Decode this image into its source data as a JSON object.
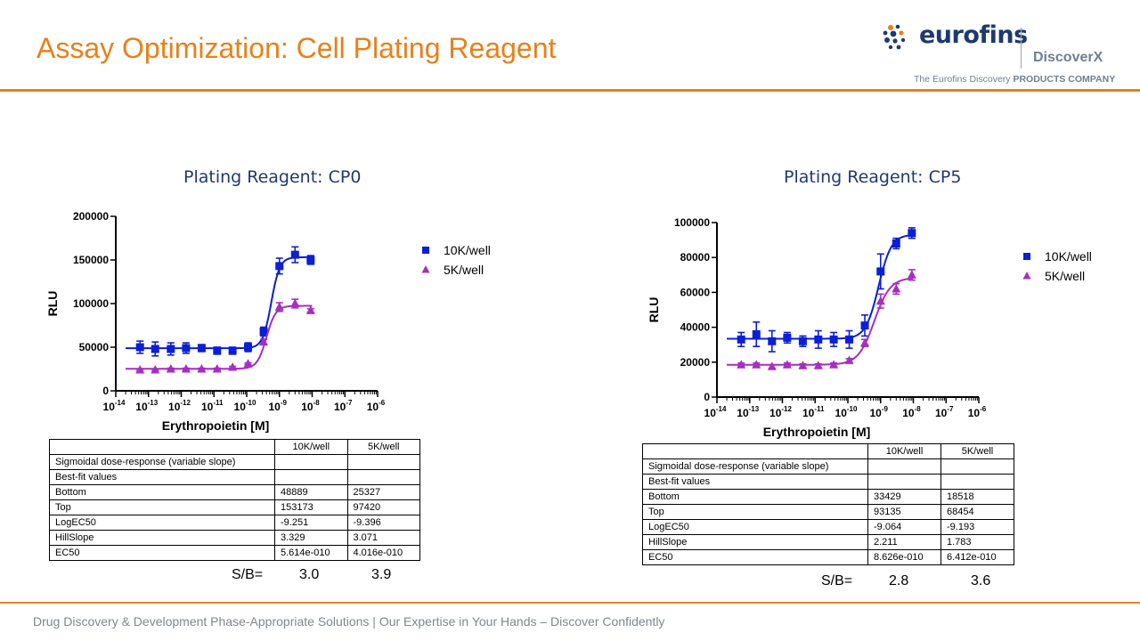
{
  "slide": {
    "title": "Assay Optimization: Cell Plating Reagent",
    "footer": "Drug Discovery & Development Phase-Appropriate Solutions | Our Expertise in Your Hands – Discover Confidently",
    "logo": {
      "brand": "eurofins",
      "sub": "DiscoverX",
      "tag_a": "The Eurofins Discovery",
      "tag_b": "PRODUCTS COMPANY",
      "color": "#1d3a6b"
    },
    "accent_color": "#e8801b"
  },
  "chart_data": [
    {
      "type": "scatter",
      "title": "Plating Reagent: CP0",
      "xlabel": "Erythropoietin [M]",
      "ylabel": "RLU",
      "xscale": "log",
      "xlim": [
        1e-14,
        1e-06
      ],
      "ylim": [
        0,
        200000
      ],
      "yticks": [
        "0",
        "50000",
        "100000",
        "150000",
        "200000"
      ],
      "xtick_exponents": [
        "-14",
        "-13",
        "-12",
        "-11",
        "-10",
        "-9",
        "-8",
        "-7",
        "-6"
      ],
      "legend_position": "right",
      "series": [
        {
          "name": "10K/well",
          "color": "#0a1fd6",
          "marker": "square",
          "x": [
            5.5e-14,
            1.6e-13,
            4.8e-13,
            1.4e-12,
            4.2e-12,
            1.25e-11,
            3.7e-11,
            1.1e-10,
            3.3e-10,
            1e-09,
            3e-09,
            9e-09
          ],
          "y": [
            50000,
            48000,
            48000,
            49000,
            49000,
            46000,
            46000,
            50000,
            68000,
            143000,
            156000,
            150000
          ],
          "err": [
            7000,
            8000,
            7000,
            6000,
            4000,
            4000,
            4000,
            5000,
            5000,
            9000,
            9000,
            5000
          ],
          "fit": {
            "bottom": 48889,
            "top": 153173,
            "logec50": -9.251,
            "hill": 3.329
          }
        },
        {
          "name": "5K/well",
          "color": "#a62ec2",
          "marker": "triangle",
          "x": [
            5.5e-14,
            1.6e-13,
            4.8e-13,
            1.4e-12,
            4.2e-12,
            1.25e-11,
            3.7e-11,
            1.1e-10,
            3.3e-10,
            1e-09,
            3e-09,
            9e-09
          ],
          "y": [
            24000,
            24000,
            25000,
            25000,
            25000,
            25000,
            27000,
            31000,
            56000,
            96000,
            100000,
            92000
          ],
          "err": [
            1000,
            1000,
            1000,
            1000,
            1000,
            1000,
            1000,
            1000,
            3000,
            5000,
            5000,
            2000
          ],
          "fit": {
            "bottom": 25327,
            "top": 97420,
            "logec50": -9.396,
            "hill": 3.071
          }
        }
      ]
    },
    {
      "type": "scatter",
      "title": "Plating Reagent: CP5",
      "xlabel": "Erythropoietin [M]",
      "ylabel": "RLU",
      "xscale": "log",
      "xlim": [
        1e-14,
        1e-06
      ],
      "ylim": [
        0,
        100000
      ],
      "yticks": [
        "0",
        "20000",
        "40000",
        "60000",
        "80000",
        "100000"
      ],
      "xtick_exponents": [
        "-14",
        "-13",
        "-12",
        "-11",
        "-10",
        "-9",
        "-8",
        "-7",
        "-6"
      ],
      "legend_position": "right",
      "series": [
        {
          "name": "10K/well",
          "color": "#0a1fd6",
          "marker": "square",
          "x": [
            5.5e-14,
            1.6e-13,
            4.8e-13,
            1.4e-12,
            4.2e-12,
            1.25e-11,
            3.7e-11,
            1.1e-10,
            3.3e-10,
            1e-09,
            3e-09,
            9e-09
          ],
          "y": [
            33000,
            36000,
            32000,
            34000,
            32000,
            33000,
            33000,
            33000,
            41000,
            72000,
            88000,
            94000
          ],
          "err": [
            4000,
            7000,
            6000,
            3000,
            3000,
            5000,
            4000,
            5000,
            6000,
            10000,
            3000,
            3000
          ],
          "fit": {
            "bottom": 33429,
            "top": 93135,
            "logec50": -9.064,
            "hill": 2.211
          }
        },
        {
          "name": "5K/well",
          "color": "#a62ec2",
          "marker": "triangle",
          "x": [
            5.5e-14,
            1.6e-13,
            4.8e-13,
            1.4e-12,
            4.2e-12,
            1.25e-11,
            3.7e-11,
            1.1e-10,
            3.3e-10,
            1e-09,
            3e-09,
            9e-09
          ],
          "y": [
            18500,
            18500,
            17500,
            18500,
            18000,
            18000,
            18500,
            21000,
            31000,
            55000,
            62000,
            70000
          ],
          "err": [
            1000,
            1000,
            1000,
            1000,
            1000,
            1000,
            1000,
            1000,
            2000,
            4000,
            3000,
            3000
          ],
          "fit": {
            "bottom": 18518,
            "top": 68454,
            "logec50": -9.193,
            "hill": 1.783
          }
        }
      ]
    }
  ],
  "tables": [
    {
      "headers": [
        "",
        "10K/well",
        "5K/well"
      ],
      "rows": [
        [
          "Sigmoidal dose-response (variable slope)",
          "",
          ""
        ],
        [
          "Best-fit values",
          "",
          ""
        ],
        [
          "Bottom",
          "48889",
          "25327"
        ],
        [
          "Top",
          "153173",
          "97420"
        ],
        [
          "LogEC50",
          "-9.251",
          "-9.396"
        ],
        [
          "HillSlope",
          "3.329",
          "3.071"
        ],
        [
          "EC50",
          "5.614e-010",
          "4.016e-010"
        ]
      ],
      "sb_label": "S/B=",
      "sb_values": [
        "3.0",
        "3.9"
      ]
    },
    {
      "headers": [
        "",
        "10K/well",
        "5K/well"
      ],
      "rows": [
        [
          "Sigmoidal dose-response (variable slope)",
          "",
          ""
        ],
        [
          "Best-fit values",
          "",
          ""
        ],
        [
          "Bottom",
          "33429",
          "18518"
        ],
        [
          "Top",
          "93135",
          "68454"
        ],
        [
          "LogEC50",
          "-9.064",
          "-9.193"
        ],
        [
          "HillSlope",
          "2.211",
          "1.783"
        ],
        [
          "EC50",
          "8.626e-010",
          "6.412e-010"
        ]
      ],
      "sb_label": "S/B=",
      "sb_values": [
        "2.8",
        "3.6"
      ]
    }
  ]
}
